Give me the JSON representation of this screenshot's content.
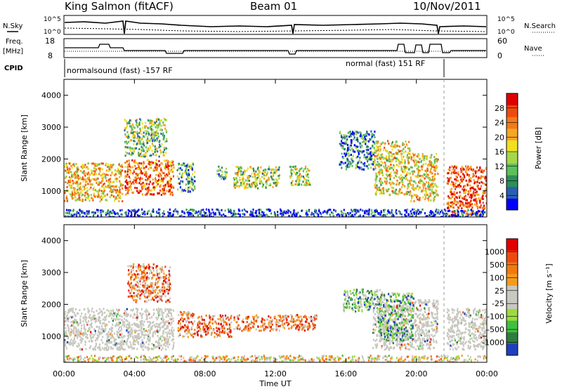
{
  "header": {
    "title": "King Salmon (fitACF)",
    "beam": "Beam 01",
    "date": "10/Nov/2011"
  },
  "status_panels": {
    "nsky_label": "N.Sky",
    "nsearch_label": "N.Search",
    "noise_ticks_left": [
      "10^5",
      "10^0"
    ],
    "noise_ticks_right": [
      "10^5",
      "10^0"
    ],
    "freq_label_1": "Freq.",
    "freq_label_2": "[MHz]",
    "freq_ticks": [
      "18",
      "8"
    ],
    "nave_label": "Nave",
    "nave_ticks": [
      "60",
      "0"
    ],
    "cpid_label": "CPID",
    "cpid_segments": [
      "normalsound (fast) -157 RF",
      "normal (fast) 151 RF"
    ]
  },
  "chart_data": [
    {
      "type": "heatmap",
      "panel": "power",
      "xlabel": "",
      "ylabel": "Slant Range [km]",
      "x_ticks": [
        "00:00",
        "04:00",
        "08:00",
        "12:00",
        "16:00",
        "20:00",
        "00:00"
      ],
      "xlim_hours": [
        0,
        24
      ],
      "ylim_km": [
        180,
        4500
      ],
      "y_ticks": [
        "1000",
        "2000",
        "3000",
        "4000"
      ],
      "colorbar_label": "Power [dB]",
      "colorbar_ticks": [
        "4",
        "8",
        "12",
        "16",
        "20",
        "24",
        "28"
      ],
      "colorbar_range": [
        0,
        30
      ],
      "colorscale": [
        "#0000ff",
        "#2a5fb0",
        "#2e8f57",
        "#5cc05c",
        "#a6d64a",
        "#f0e020",
        "#f5a623",
        "#f27a1a",
        "#ee4a10",
        "#e00000"
      ],
      "scatter_regions": [
        {
          "t0": 0.0,
          "t1": 3.3,
          "r0": 700,
          "r1": 1900,
          "level": 0.62
        },
        {
          "t0": 3.4,
          "t1": 6.2,
          "r0": 900,
          "r1": 2000,
          "level": 0.78
        },
        {
          "t0": 3.4,
          "t1": 5.8,
          "r0": 2100,
          "r1": 3300,
          "level": 0.4
        },
        {
          "t0": 6.4,
          "t1": 7.4,
          "r0": 1000,
          "r1": 1900,
          "level": 0.3
        },
        {
          "t0": 8.6,
          "t1": 9.2,
          "r0": 1400,
          "r1": 1800,
          "level": 0.32
        },
        {
          "t0": 9.6,
          "t1": 12.2,
          "r0": 1100,
          "r1": 1800,
          "level": 0.45
        },
        {
          "t0": 12.8,
          "t1": 14.0,
          "r0": 1200,
          "r1": 1800,
          "level": 0.46
        },
        {
          "t0": 15.6,
          "t1": 17.6,
          "r0": 1700,
          "r1": 2900,
          "level": 0.22
        },
        {
          "t0": 17.6,
          "t1": 19.6,
          "r0": 900,
          "r1": 2600,
          "level": 0.55
        },
        {
          "t0": 19.6,
          "t1": 21.2,
          "r0": 700,
          "r1": 2200,
          "level": 0.6
        },
        {
          "t0": 21.7,
          "t1": 24.0,
          "r0": 450,
          "r1": 1800,
          "level": 0.85
        },
        {
          "t0": 21.7,
          "t1": 24.0,
          "r0": 250,
          "r1": 400,
          "level": 0.85
        },
        {
          "t0": 0.0,
          "t1": 24.0,
          "r0": 180,
          "r1": 450,
          "level": 0.1
        }
      ]
    },
    {
      "type": "heatmap",
      "panel": "velocity",
      "xlabel": "Time UT",
      "ylabel": "Slant Range [km]",
      "x_ticks": [
        "00:00",
        "04:00",
        "08:00",
        "12:00",
        "16:00",
        "20:00",
        "00:00"
      ],
      "xlim_hours": [
        0,
        24
      ],
      "ylim_km": [
        180,
        4500
      ],
      "y_ticks": [
        "1000",
        "2000",
        "3000",
        "4000"
      ],
      "colorbar_label": "Velocity [m s⁻¹]",
      "colorbar_ticks": [
        "1000",
        "500",
        "100",
        "25",
        "-25",
        "-100",
        "-500",
        "-1000"
      ],
      "colorscale": [
        "#1f3fbf",
        "#2e7d3e",
        "#3fbf3f",
        "#9bdc3c",
        "#c8c8c0",
        "#c8c8c0",
        "#f59b1c",
        "#f07a10",
        "#ee4a10",
        "#e00000"
      ],
      "scatter_regions": [
        {
          "t0": 0.0,
          "t1": 6.2,
          "r0": 600,
          "r1": 1900,
          "level": 0.5,
          "ground": true
        },
        {
          "t0": 3.6,
          "t1": 6.0,
          "r0": 2100,
          "r1": 3300,
          "level": 0.72
        },
        {
          "t0": 6.4,
          "t1": 7.4,
          "r0": 1000,
          "r1": 1800,
          "level": 0.7
        },
        {
          "t0": 7.5,
          "t1": 9.5,
          "r0": 1000,
          "r1": 1700,
          "level": 0.75
        },
        {
          "t0": 9.6,
          "t1": 14.3,
          "r0": 1200,
          "r1": 1700,
          "level": 0.72
        },
        {
          "t0": 15.8,
          "t1": 18.0,
          "r0": 1800,
          "r1": 2500,
          "level": 0.3
        },
        {
          "t0": 17.5,
          "t1": 21.2,
          "r0": 600,
          "r1": 2200,
          "level": 0.5,
          "ground": true
        },
        {
          "t0": 17.8,
          "t1": 19.8,
          "r0": 900,
          "r1": 2400,
          "level": 0.25
        },
        {
          "t0": 21.7,
          "t1": 24.0,
          "r0": 600,
          "r1": 1900,
          "level": 0.5,
          "ground": true
        },
        {
          "t0": 0.0,
          "t1": 24.0,
          "r0": 180,
          "r1": 420,
          "level": 0.55
        }
      ]
    }
  ]
}
